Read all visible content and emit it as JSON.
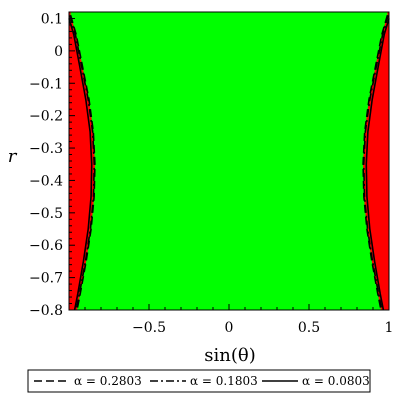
{
  "chart_data": {
    "type": "region",
    "title": "",
    "xlabel": "sin(θ)",
    "ylabel": "r",
    "xlim": [
      -1,
      1
    ],
    "ylim": [
      -0.8,
      0.12
    ],
    "grid": false,
    "x_ticks": [
      {
        "value": -0.5,
        "label": "−0.5"
      },
      {
        "value": 0,
        "label": "0"
      },
      {
        "value": 0.5,
        "label": "0.5"
      },
      {
        "value": 1,
        "label": "1"
      }
    ],
    "y_ticks": [
      {
        "value": 0.1,
        "label": "0.1"
      },
      {
        "value": 0,
        "label": "0"
      },
      {
        "value": -0.1,
        "label": "−0.1"
      },
      {
        "value": -0.2,
        "label": "−0.2"
      },
      {
        "value": -0.3,
        "label": "−0.3"
      },
      {
        "value": -0.4,
        "label": "−0.4"
      },
      {
        "value": -0.5,
        "label": "−0.5"
      },
      {
        "value": -0.6,
        "label": "−0.6"
      },
      {
        "value": -0.7,
        "label": "−0.7"
      },
      {
        "value": -0.8,
        "label": "−0.8"
      }
    ],
    "regions": {
      "inside_color": "#00ff00",
      "outside_color": "#ff0000"
    },
    "series": [
      {
        "name": "α = 0.2803",
        "style": "dash",
        "right_boundary": [
          [
            0.99,
            0.11
          ],
          [
            0.955,
            0.05
          ],
          [
            0.915,
            -0.05
          ],
          [
            0.875,
            -0.15
          ],
          [
            0.848,
            -0.25
          ],
          [
            0.838,
            -0.35
          ],
          [
            0.843,
            -0.45
          ],
          [
            0.862,
            -0.55
          ],
          [
            0.893,
            -0.65
          ],
          [
            0.93,
            -0.75
          ],
          [
            0.95,
            -0.8
          ]
        ]
      },
      {
        "name": "α = 0.1803",
        "style": "dashdot",
        "right_boundary": [
          [
            0.995,
            0.11
          ],
          [
            0.96,
            0.05
          ],
          [
            0.92,
            -0.05
          ],
          [
            0.88,
            -0.15
          ],
          [
            0.852,
            -0.25
          ],
          [
            0.842,
            -0.35
          ],
          [
            0.847,
            -0.45
          ],
          [
            0.866,
            -0.55
          ],
          [
            0.897,
            -0.65
          ],
          [
            0.935,
            -0.75
          ],
          [
            0.955,
            -0.8
          ]
        ]
      },
      {
        "name": "α = 0.0803",
        "style": "solid",
        "right_boundary": [
          [
            1.0,
            0.1
          ],
          [
            0.97,
            0.05
          ],
          [
            0.932,
            -0.05
          ],
          [
            0.895,
            -0.15
          ],
          [
            0.868,
            -0.25
          ],
          [
            0.858,
            -0.35
          ],
          [
            0.862,
            -0.45
          ],
          [
            0.88,
            -0.55
          ],
          [
            0.91,
            -0.65
          ],
          [
            0.945,
            -0.75
          ],
          [
            0.965,
            -0.8
          ]
        ]
      }
    ]
  }
}
